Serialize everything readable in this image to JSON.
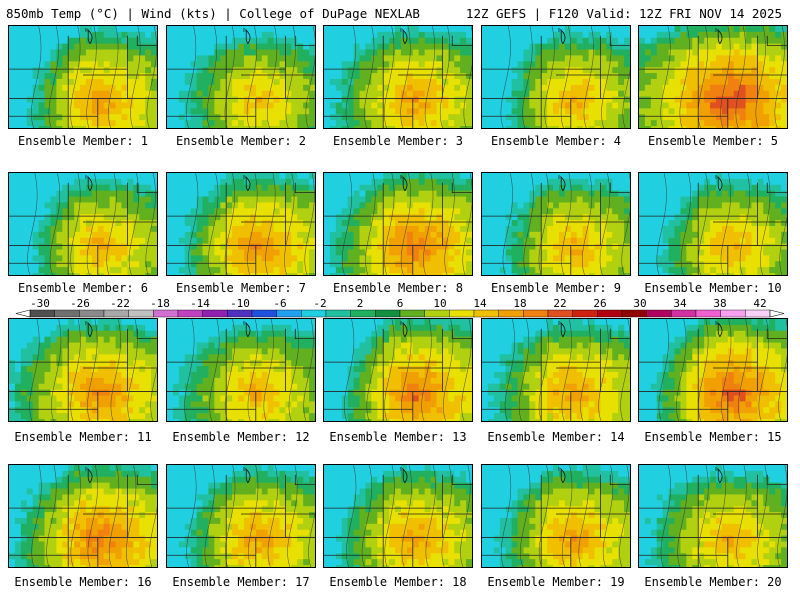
{
  "header": {
    "left": "850mb Temp (°C) | Wind (kts) | College of DuPage NEXLAB",
    "right": "12Z GEFS | F120 Valid: 12Z FRI NOV 14 2025"
  },
  "members": [
    {
      "label": "Ensemble Member: 1",
      "warmth": 0.55,
      "cold_west": 0.7
    },
    {
      "label": "Ensemble Member: 2",
      "warmth": 0.45,
      "cold_west": 0.35
    },
    {
      "label": "Ensemble Member: 3",
      "warmth": 0.55,
      "cold_west": 0.4
    },
    {
      "label": "Ensemble Member: 4",
      "warmth": 0.5,
      "cold_west": 0.75
    },
    {
      "label": "Ensemble Member: 5",
      "warmth": 0.75,
      "cold_west": 0.1
    },
    {
      "label": "Ensemble Member: 6",
      "warmth": 0.5,
      "cold_west": 0.7
    },
    {
      "label": "Ensemble Member: 7",
      "warmth": 0.6,
      "cold_west": 0.65
    },
    {
      "label": "Ensemble Member: 8",
      "warmth": 0.65,
      "cold_west": 0.55
    },
    {
      "label": "Ensemble Member: 9",
      "warmth": 0.5,
      "cold_west": 0.6
    },
    {
      "label": "Ensemble Member: 10",
      "warmth": 0.5,
      "cold_west": 0.7
    },
    {
      "label": "Ensemble Member: 11",
      "warmth": 0.6,
      "cold_west": 0.3
    },
    {
      "label": "Ensemble Member: 12",
      "warmth": 0.5,
      "cold_west": 0.3
    },
    {
      "label": "Ensemble Member: 13",
      "warmth": 0.65,
      "cold_west": 0.95
    },
    {
      "label": "Ensemble Member: 14",
      "warmth": 0.55,
      "cold_west": 0.45
    },
    {
      "label": "Ensemble Member: 15",
      "warmth": 0.7,
      "cold_west": 0.9
    },
    {
      "label": "Ensemble Member: 16",
      "warmth": 0.65,
      "cold_west": 0.55
    },
    {
      "label": "Ensemble Member: 17",
      "warmth": 0.55,
      "cold_west": 0.65
    },
    {
      "label": "Ensemble Member: 18",
      "warmth": 0.55,
      "cold_west": 0.55
    },
    {
      "label": "Ensemble Member: 19",
      "warmth": 0.55,
      "cold_west": 0.6
    },
    {
      "label": "Ensemble Member: 20",
      "warmth": 0.5,
      "cold_west": 0.3
    }
  ],
  "colorbar": {
    "ticks": [
      "-30",
      "-26",
      "-22",
      "-18",
      "-14",
      "-10",
      "-6",
      "-2",
      "2",
      "6",
      "10",
      "14",
      "18",
      "22",
      "26",
      "30",
      "34",
      "38",
      "42"
    ],
    "colors": [
      "#505050",
      "#707070",
      "#8a8a8a",
      "#a8a8a8",
      "#c0c0c0",
      "#d070d0",
      "#c040c0",
      "#9020b0",
      "#5030c0",
      "#2050e0",
      "#20a0f0",
      "#20d0e0",
      "#20c0a0",
      "#20b060",
      "#109040",
      "#60b020",
      "#b0d010",
      "#e8e000",
      "#f0c000",
      "#f0a000",
      "#f08010",
      "#e05020",
      "#d02010",
      "#b00010",
      "#900000",
      "#b00060",
      "#d030a0",
      "#f060d0",
      "#f8a0f0",
      "#f8d0f8"
    ]
  }
}
